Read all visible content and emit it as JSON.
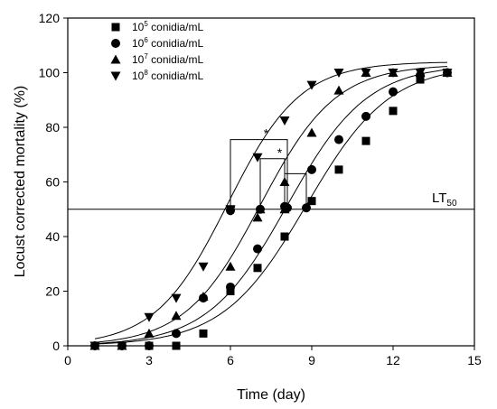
{
  "chart_data": {
    "type": "scatter",
    "xlabel": "Time (day)",
    "ylabel": "Locust corrected mortality (%)",
    "xlim": [
      0,
      15
    ],
    "ylim": [
      0,
      120
    ],
    "xticks": [
      0,
      3,
      6,
      9,
      12,
      15
    ],
    "yticks": [
      0,
      20,
      40,
      60,
      80,
      100,
      120
    ],
    "grid": false,
    "legend_position": "top-left",
    "series": [
      {
        "name_base": "10",
        "name_exp": "5",
        "name_unit": " conidia/mL",
        "marker": "square",
        "x": [
          1,
          2,
          3,
          4,
          5,
          6,
          7,
          8,
          9,
          10,
          11,
          12,
          13,
          14
        ],
        "y": [
          0,
          0,
          0,
          0,
          4.5,
          20,
          28.5,
          40,
          53,
          64.5,
          75,
          86,
          97.5,
          100
        ],
        "fit": {
          "A": 103,
          "x50": 8.8,
          "k": 0.65
        }
      },
      {
        "name_base": "10",
        "name_exp": "6",
        "name_unit": " conidia/mL",
        "marker": "circle",
        "x": [
          1,
          2,
          3,
          4,
          5,
          6,
          7,
          8,
          9,
          10,
          11,
          12,
          13,
          14
        ],
        "y": [
          0,
          0,
          0,
          4.5,
          17.5,
          21.5,
          35.5,
          51,
          64.5,
          75.5,
          84,
          93,
          99,
          100
        ],
        "fit": {
          "A": 103,
          "x50": 8.1,
          "k": 0.68
        }
      },
      {
        "name_base": "10",
        "name_exp": "7",
        "name_unit": " conidia/mL",
        "marker": "triangle-up",
        "x": [
          1,
          2,
          3,
          4,
          5,
          6,
          7,
          8,
          9,
          10,
          11,
          12,
          13,
          14
        ],
        "y": [
          0,
          0,
          4.5,
          11,
          18,
          29,
          47,
          60,
          78,
          93.5,
          100,
          100,
          100,
          100
        ],
        "fit": {
          "A": 103,
          "x50": 7.1,
          "k": 0.72
        }
      },
      {
        "name_base": "10",
        "name_exp": "8",
        "name_unit": " conidia/mL",
        "marker": "triangle-down",
        "x": [
          1,
          2,
          3,
          4,
          5,
          6,
          7,
          8,
          9,
          10,
          11,
          12,
          13,
          14
        ],
        "y": [
          0,
          0,
          10.5,
          17.5,
          29,
          49.5,
          69,
          82.5,
          95.5,
          100,
          100,
          100,
          100,
          100
        ],
        "fit": {
          "A": 104,
          "x50": 5.9,
          "k": 0.75
        }
      }
    ],
    "lt50_points": [
      {
        "marker": "triangle-down",
        "x": 6.0,
        "y": 50
      },
      {
        "marker": "circle",
        "x": 6.0,
        "y": 49.5
      },
      {
        "marker": "triangle-up",
        "x": 7.1,
        "y": 50
      },
      {
        "marker": "circle",
        "x": 8.1,
        "y": 50.5
      },
      {
        "marker": "circle",
        "x": 8.8,
        "y": 50.5
      },
      {
        "marker": "triangle-up",
        "x": 8.0,
        "y": 50
      },
      {
        "marker": "circle",
        "x": 7.1,
        "y": 50
      }
    ],
    "reference_line": {
      "y": 50,
      "label": "LT",
      "label_sub": "50"
    },
    "significance_brackets": [
      {
        "x1": 6.0,
        "x2": 8.1,
        "top": 75.5,
        "label": "*"
      },
      {
        "x1": 7.1,
        "x2": 8.0,
        "top": 68.5,
        "label": "*"
      },
      {
        "x1": 8.0,
        "x2": 8.8,
        "top": 63,
        "label": ""
      }
    ]
  }
}
